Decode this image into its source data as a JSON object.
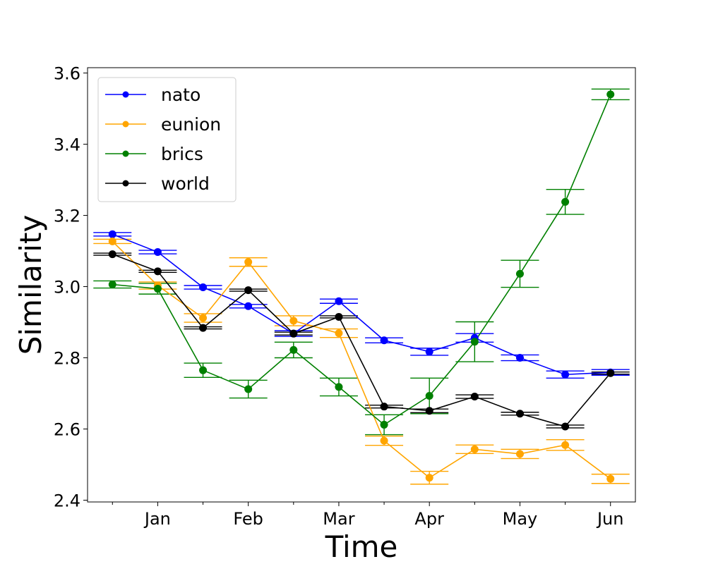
{
  "chart_data": {
    "type": "line",
    "xlabel": "Time",
    "ylabel": "Similarity",
    "x": [
      0,
      1,
      2,
      3,
      4,
      5,
      6,
      7,
      8,
      9,
      10,
      11
    ],
    "xticks": [
      {
        "pos": 1,
        "label": "Jan"
      },
      {
        "pos": 3,
        "label": "Feb"
      },
      {
        "pos": 5,
        "label": "Mar"
      },
      {
        "pos": 7,
        "label": "Apr"
      },
      {
        "pos": 9,
        "label": "May"
      },
      {
        "pos": 11,
        "label": "Jun"
      }
    ],
    "minor_xticks": [
      0,
      2,
      4,
      6,
      8,
      10
    ],
    "yticks": [
      "2.4",
      "2.6",
      "2.8",
      "3.0",
      "3.2",
      "3.4",
      "3.6"
    ],
    "ylim": [
      2.395,
      3.615
    ],
    "xlim": [
      -0.55,
      11.55
    ],
    "grid": false,
    "legend_position": "top-left",
    "series": [
      {
        "name": "nato",
        "color": "#0000ff",
        "values": [
          3.147,
          3.097,
          2.998,
          2.945,
          2.868,
          2.959,
          2.849,
          2.817,
          2.856,
          2.8,
          2.753,
          2.759
        ],
        "errors": [
          0.005,
          0.005,
          0.005,
          0.005,
          0.008,
          0.006,
          0.007,
          0.01,
          0.012,
          0.008,
          0.01,
          0.008
        ]
      },
      {
        "name": "eunion",
        "color": "#ffa500",
        "values": [
          3.127,
          3.003,
          2.912,
          3.069,
          2.904,
          2.869,
          2.567,
          2.463,
          2.543,
          2.53,
          2.555,
          2.46
        ],
        "errors": [
          0.006,
          0.01,
          0.012,
          0.012,
          0.014,
          0.012,
          0.013,
          0.018,
          0.012,
          0.013,
          0.015,
          0.013
        ]
      },
      {
        "name": "brics",
        "color": "#008000",
        "values": [
          3.006,
          2.994,
          2.765,
          2.712,
          2.822,
          2.718,
          2.612,
          2.693,
          2.845,
          3.036,
          3.238,
          3.54
        ],
        "errors": [
          0.01,
          0.015,
          0.02,
          0.025,
          0.022,
          0.025,
          0.028,
          0.05,
          0.056,
          0.038,
          0.035,
          0.015
        ]
      },
      {
        "name": "world",
        "color": "#000000",
        "values": [
          3.091,
          3.043,
          2.884,
          2.99,
          2.868,
          2.915,
          2.663,
          2.651,
          2.691,
          2.643,
          2.607,
          2.757
        ],
        "errors": [
          0.003,
          0.003,
          0.003,
          0.003,
          0.004,
          0.003,
          0.004,
          0.005,
          0.005,
          0.004,
          0.004,
          0.003
        ]
      }
    ]
  }
}
